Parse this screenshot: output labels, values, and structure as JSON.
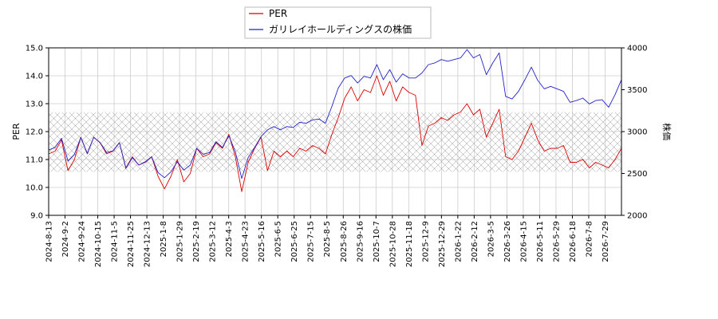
{
  "chart_data": {
    "type": "line",
    "title": "",
    "xlabel": "",
    "ylabel_left": "PER",
    "ylabel_right": "株価",
    "ylim_left": [
      9.0,
      15.0
    ],
    "yticks_left": [
      "9.0",
      "10.0",
      "11.0",
      "12.0",
      "13.0",
      "14.0",
      "15.0"
    ],
    "ylim_right": [
      2000,
      4000
    ],
    "yticks_right": [
      "2000",
      "2500",
      "3000",
      "3500",
      "4000"
    ],
    "x_ticks": [
      "2024-8-13",
      "2024-9-2",
      "2024-9-24",
      "2024-10-15",
      "2024-11-5",
      "2024-11-25",
      "2024-12-13",
      "2025-1-8",
      "2025-1-29",
      "2025-2-19",
      "2025-3-12",
      "2025-4-3",
      "2025-4-23",
      "2025-5-16",
      "2025-6-5",
      "2025-6-25",
      "2025-7-15",
      "2025-8-5",
      "2025-8-26",
      "2025-9-16",
      "2025-10-7",
      "2025-10-28",
      "2025-11-18",
      "2025-12-9",
      "2025-12-29",
      "2026-1-22",
      "2026-2-12",
      "2026-3-5",
      "2026-3-26",
      "2026-4-15",
      "2026-5-11",
      "2026-5-29",
      "2026-6-18",
      "2026-7-8",
      "2026-7-29"
    ],
    "band": {
      "axis": "right",
      "range": [
        2520,
        3230
      ]
    },
    "grid": true,
    "legend": {
      "position": "top-center",
      "entries": [
        "PER",
        "ガリレイホールディングスの株価"
      ]
    },
    "series": [
      {
        "name": "PER",
        "axis": "left",
        "color": "#dd0000",
        "values": [
          11.2,
          11.3,
          11.7,
          10.6,
          11.0,
          11.8,
          11.2,
          11.8,
          11.6,
          11.2,
          11.3,
          11.6,
          10.7,
          11.1,
          10.8,
          10.9,
          11.1,
          10.4,
          9.95,
          10.4,
          11.0,
          10.2,
          10.5,
          11.4,
          11.1,
          11.2,
          11.6,
          11.4,
          11.9,
          11.1,
          9.85,
          10.9,
          11.4,
          11.8,
          10.6,
          11.3,
          11.1,
          11.3,
          11.1,
          11.4,
          11.3,
          11.5,
          11.4,
          11.2,
          11.9,
          12.5,
          13.2,
          13.6,
          13.1,
          13.5,
          13.4,
          14.0,
          13.3,
          13.8,
          13.1,
          13.6,
          13.4,
          13.3,
          11.5,
          12.2,
          12.3,
          12.5,
          12.4,
          12.6,
          12.7,
          13.0,
          12.6,
          12.8,
          11.8,
          12.3,
          12.8,
          11.1,
          11.0,
          11.3,
          11.8,
          12.3,
          11.7,
          11.3,
          11.4,
          11.4,
          11.5,
          10.9,
          10.9,
          11.0,
          10.7,
          10.9,
          10.8,
          10.7,
          11.0,
          11.4
        ]
      },
      {
        "name": "ガリレイホールディングスの株価",
        "axis": "right",
        "color": "#2222cc",
        "values": [
          2780,
          2810,
          2920,
          2650,
          2730,
          2930,
          2740,
          2930,
          2870,
          2750,
          2770,
          2870,
          2560,
          2690,
          2600,
          2640,
          2700,
          2510,
          2450,
          2520,
          2640,
          2540,
          2600,
          2800,
          2730,
          2750,
          2880,
          2810,
          2950,
          2760,
          2440,
          2690,
          2810,
          2940,
          3020,
          3060,
          3020,
          3060,
          3050,
          3110,
          3100,
          3140,
          3150,
          3100,
          3300,
          3520,
          3640,
          3670,
          3580,
          3660,
          3640,
          3800,
          3620,
          3740,
          3590,
          3690,
          3640,
          3640,
          3700,
          3800,
          3820,
          3860,
          3840,
          3860,
          3880,
          3980,
          3880,
          3920,
          3680,
          3820,
          3940,
          3420,
          3390,
          3480,
          3620,
          3770,
          3610,
          3510,
          3540,
          3510,
          3480,
          3350,
          3370,
          3400,
          3330,
          3370,
          3380,
          3290,
          3440,
          3620
        ]
      }
    ]
  }
}
